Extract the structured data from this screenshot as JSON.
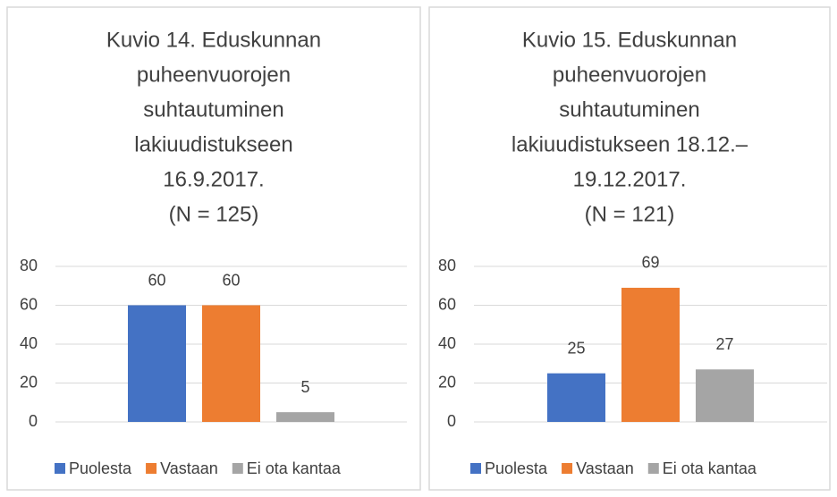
{
  "chart_data": [
    {
      "type": "bar",
      "title": [
        "Kuvio 14. Eduskunnan",
        "puheenvuorojen",
        "suhtautuminen",
        "lakiuudistukseen",
        "16.9.2017."
      ],
      "subtitle": "(N = 125)",
      "categories": [
        null
      ],
      "series": [
        {
          "name": "Puolesta",
          "color": "#4472c4",
          "values": [
            60
          ]
        },
        {
          "name": "Vastaan",
          "color": "#ed7d31",
          "values": [
            60
          ]
        },
        {
          "name": "Ei ota kantaa",
          "color": "#a5a5a5",
          "values": [
            5
          ]
        }
      ],
      "ylim": [
        0,
        80
      ],
      "yticks": [
        0,
        20,
        40,
        60,
        80
      ],
      "grid": true,
      "legend": "bottom"
    },
    {
      "type": "bar",
      "title": [
        "Kuvio 15. Eduskunnan",
        "puheenvuorojen",
        "suhtautuminen",
        "lakiuudistukseen 18.12.–",
        "19.12.2017."
      ],
      "subtitle": "(N = 121)",
      "categories": [
        null
      ],
      "series": [
        {
          "name": "Puolesta",
          "color": "#4472c4",
          "values": [
            25
          ]
        },
        {
          "name": "Vastaan",
          "color": "#ed7d31",
          "values": [
            69
          ]
        },
        {
          "name": "Ei ota kantaa",
          "color": "#a5a5a5",
          "values": [
            27
          ]
        }
      ],
      "ylim": [
        0,
        80
      ],
      "yticks": [
        0,
        20,
        40,
        60,
        80
      ],
      "grid": true,
      "legend": "bottom"
    }
  ]
}
